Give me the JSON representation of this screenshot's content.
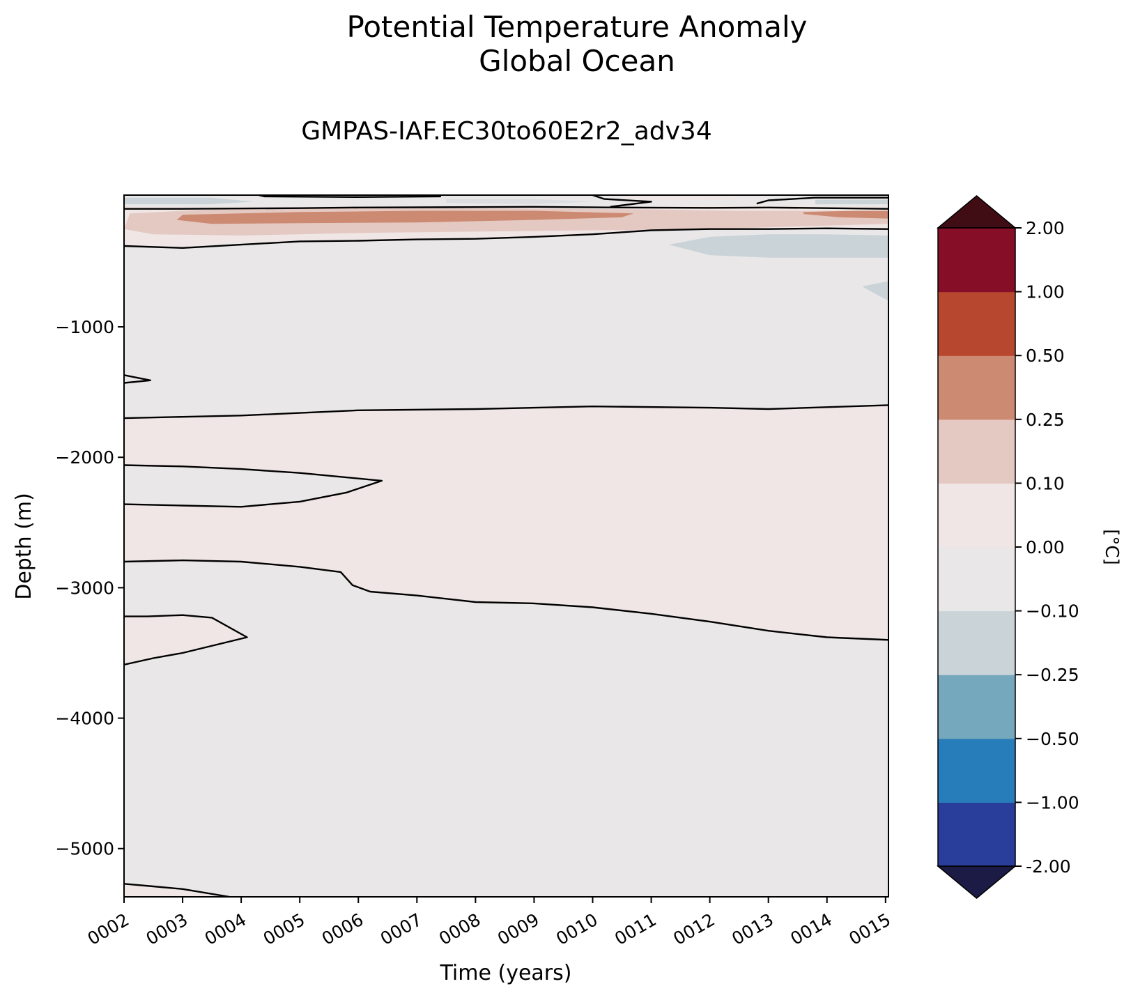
{
  "chart_data": {
    "type": "heatmap",
    "title": [
      "Potential Temperature Anomaly",
      "Global Ocean"
    ],
    "subtitle": "GMPAS-IAF.EC30to60E2r2_adv34",
    "xlabel": "Time (years)",
    "ylabel": "Depth (m)",
    "x_tick_labels": [
      "0002",
      "0003",
      "0004",
      "0005",
      "0006",
      "0007",
      "0008",
      "0009",
      "0010",
      "0011",
      "0012",
      "0013",
      "0014",
      "0015"
    ],
    "x_ticks": [
      2,
      3,
      4,
      5,
      6,
      7,
      8,
      9,
      10,
      11,
      12,
      13,
      14,
      15
    ],
    "xlim": [
      2,
      15.05
    ],
    "y_ticks": [
      -1000,
      -2000,
      -3000,
      -4000,
      -5000
    ],
    "ylim": [
      -5370,
      10
    ],
    "colorbar": {
      "label": "[°C]",
      "levels": [
        -2.0,
        -1.0,
        -0.5,
        -0.25,
        -0.1,
        0.0,
        0.1,
        0.25,
        0.5,
        1.0,
        2.0
      ],
      "tick_labels": [
        "-2.00",
        "−1.00",
        "−0.50",
        "−0.25",
        "−0.10",
        "0.00",
        "0.10",
        "0.25",
        "0.50",
        "1.00",
        "2.00"
      ],
      "colors": [
        "#293d9b",
        "#277cba",
        "#76a8bd",
        "#c9d3d8",
        "#e9e7e8",
        "#efe6e5",
        "#e4c9c2",
        "#cd8a72",
        "#b7472f",
        "#870e27"
      ],
      "under_color": "#1b1b45",
      "over_color": "#410d14",
      "extend": "both"
    },
    "background_color": "#e9e7e8",
    "regions": [
      {
        "name": "positive-deep-band",
        "range": "0.00 to 0.10",
        "color": "#efe6e5",
        "top": [
          [
            2,
            -1700
          ],
          [
            3,
            -1690
          ],
          [
            5,
            -1650
          ],
          [
            7,
            -1620
          ],
          [
            10,
            -1610
          ],
          [
            13,
            -1620
          ],
          [
            15.05,
            -1600
          ]
        ],
        "bottom": [
          [
            15.05,
            -3400
          ],
          [
            14,
            -3380
          ],
          [
            13,
            -3330
          ],
          [
            12,
            -3260
          ],
          [
            11,
            -3200
          ],
          [
            10,
            -3150
          ],
          [
            9,
            -3120
          ],
          [
            8,
            -3110
          ],
          [
            7,
            -3060
          ],
          [
            6.2,
            -3030
          ],
          [
            5.9,
            -2980
          ],
          [
            5.7,
            -2880
          ],
          [
            5,
            -2850
          ],
          [
            4,
            -2800
          ],
          [
            3,
            -2790
          ],
          [
            2,
            -2800
          ]
        ]
      },
      {
        "name": "negative-lens-2000m",
        "range": "-0.10 to 0.00",
        "color": "#e9e7e8",
        "outline": [
          [
            2,
            -2060
          ],
          [
            3,
            -2070
          ],
          [
            4,
            -2090
          ],
          [
            5,
            -2120
          ],
          [
            6.4,
            -2180
          ],
          [
            5.8,
            -2270
          ],
          [
            5,
            -2340
          ],
          [
            4,
            -2380
          ],
          [
            3,
            -2370
          ],
          [
            2,
            -2360
          ]
        ]
      },
      {
        "name": "positive-lens-3300m",
        "range": "0.00 to 0.10",
        "color": "#efe6e5",
        "outline": [
          [
            2,
            -3220
          ],
          [
            2.4,
            -3220
          ],
          [
            3,
            -3210
          ],
          [
            3.5,
            -3230
          ],
          [
            4.1,
            -3380
          ],
          [
            3,
            -3500
          ],
          [
            2.5,
            -3540
          ],
          [
            2,
            -3590
          ]
        ]
      },
      {
        "name": "positive-upper-band",
        "range": "0.00 to 0.10",
        "color": "#efe6e5",
        "top": [
          [
            2,
            -80
          ],
          [
            4,
            -80
          ],
          [
            6,
            -75
          ],
          [
            8,
            -80
          ],
          [
            10.5,
            -80
          ],
          [
            12,
            -70
          ],
          [
            13.5,
            -70
          ],
          [
            15.05,
            -80
          ]
        ],
        "bottom": [
          [
            15.05,
            -250
          ],
          [
            14,
            -240
          ],
          [
            12,
            -250
          ],
          [
            11,
            -260
          ],
          [
            10,
            -280
          ],
          [
            9,
            -310
          ],
          [
            8,
            -320
          ],
          [
            6,
            -330
          ],
          [
            5,
            -340
          ],
          [
            4,
            -350
          ],
          [
            3,
            -395
          ],
          [
            2,
            -385
          ]
        ]
      },
      {
        "name": "positive-upper-moderate",
        "range": "0.10 to 0.25",
        "color": "#e4c9c2",
        "outline": [
          [
            2.1,
            -130
          ],
          [
            4,
            -90
          ],
          [
            6,
            -85
          ],
          [
            8,
            -90
          ],
          [
            11,
            -100
          ],
          [
            12.5,
            -110
          ],
          [
            15.05,
            -110
          ],
          [
            15.05,
            -210
          ],
          [
            12,
            -250
          ],
          [
            10,
            -260
          ],
          [
            8,
            -270
          ],
          [
            6,
            -280
          ],
          [
            4,
            -300
          ],
          [
            2.5,
            -290
          ],
          [
            2,
            -250
          ]
        ]
      },
      {
        "name": "positive-upper-strong",
        "range": "0.25 to 0.50",
        "color": "#cd8a72",
        "outline": [
          [
            3,
            -140
          ],
          [
            5,
            -120
          ],
          [
            7,
            -110
          ],
          [
            9,
            -110
          ],
          [
            10.7,
            -130
          ],
          [
            10.5,
            -160
          ],
          [
            9,
            -180
          ],
          [
            7,
            -200
          ],
          [
            5,
            -205
          ],
          [
            3.5,
            -210
          ],
          [
            2.9,
            -180
          ]
        ]
      },
      {
        "name": "positive-upper-right",
        "range": "0.25 to 0.50",
        "color": "#cd8a72",
        "outline": [
          [
            13.6,
            -120
          ],
          [
            14.5,
            -110
          ],
          [
            15.05,
            -110
          ],
          [
            15.05,
            -170
          ],
          [
            14.2,
            -160
          ],
          [
            13.6,
            -135
          ]
        ]
      },
      {
        "name": "negative-surface-left",
        "range": "-0.25 to -0.10",
        "color": "#c9d3d8",
        "outline": [
          [
            2,
            -10
          ],
          [
            3.5,
            -10
          ],
          [
            4.2,
            -40
          ],
          [
            3.5,
            -60
          ],
          [
            2,
            -60
          ]
        ]
      },
      {
        "name": "negative-surface-mid",
        "range": "-0.10 to 0.00",
        "color": "#dcdde1",
        "outline": [
          [
            7.5,
            -20
          ],
          [
            9,
            -20
          ],
          [
            10,
            -40
          ],
          [
            9,
            -60
          ],
          [
            7.5,
            -50
          ]
        ]
      },
      {
        "name": "positive-surface-top",
        "range": "0.00 to 0.10",
        "color": "#efe6e5",
        "outline": [
          [
            10.5,
            0
          ],
          [
            12.5,
            0
          ],
          [
            12.3,
            -25
          ],
          [
            11,
            -30
          ],
          [
            10.5,
            -15
          ]
        ]
      },
      {
        "name": "negative-surface-right",
        "range": "-0.25 to -0.10",
        "color": "#c9d3d8",
        "outline": [
          [
            13.8,
            -25
          ],
          [
            15.05,
            -25
          ],
          [
            15.05,
            -60
          ],
          [
            13.8,
            -60
          ]
        ]
      },
      {
        "name": "negative-subsurface-right",
        "range": "-0.25 to -0.10",
        "color": "#c9d3d8",
        "outline": [
          [
            11.3,
            -370
          ],
          [
            12,
            -310
          ],
          [
            13,
            -290
          ],
          [
            14,
            -290
          ],
          [
            15.05,
            -300
          ],
          [
            15.05,
            -470
          ],
          [
            13,
            -470
          ],
          [
            12,
            -450
          ]
        ]
      },
      {
        "name": "negative-700m-right",
        "range": "-0.25 to -0.10",
        "color": "#c9d3d8",
        "outline": [
          [
            14.6,
            -690
          ],
          [
            15.05,
            -650
          ],
          [
            15.05,
            -800
          ],
          [
            14.8,
            -740
          ]
        ]
      },
      {
        "name": "positive-bottom-left",
        "range": "0.00 to 0.10",
        "color": "#efe6e5",
        "outline": [
          [
            2,
            -5270
          ],
          [
            2.5,
            -5290
          ],
          [
            3,
            -5310
          ],
          [
            3.8,
            -5370
          ],
          [
            2,
            -5370
          ]
        ]
      }
    ],
    "contour_lines": [
      {
        "name": "zero-contour-surface",
        "points": [
          [
            2,
            -95
          ],
          [
            3,
            -95
          ],
          [
            5,
            -90
          ],
          [
            6,
            -85
          ],
          [
            8,
            -82
          ],
          [
            9,
            -80
          ],
          [
            10.5,
            -85
          ],
          [
            12,
            -88
          ],
          [
            13,
            -85
          ],
          [
            14,
            -90
          ],
          [
            15.05,
            -95
          ]
        ]
      },
      {
        "name": "zero-contour-surface-loop-left",
        "points": [
          [
            4.3,
            10
          ],
          [
            4.4,
            0
          ],
          [
            6,
            -5
          ],
          [
            7.4,
            0
          ],
          [
            7.3,
            10
          ]
        ]
      },
      {
        "name": "zero-contour-surface-loop-mid",
        "points": [
          [
            10,
            10
          ],
          [
            10.2,
            -20
          ],
          [
            11,
            -40
          ],
          [
            10.3,
            -80
          ]
        ]
      },
      {
        "name": "zero-contour-surface-loop-right",
        "points": [
          [
            12.8,
            -55
          ],
          [
            13,
            -30
          ],
          [
            13.8,
            -10
          ],
          [
            15.05,
            -10
          ]
        ]
      },
      {
        "name": "zero-contour-400m",
        "points": [
          [
            2,
            -380
          ],
          [
            3,
            -395
          ],
          [
            4,
            -370
          ],
          [
            5,
            -345
          ],
          [
            6,
            -340
          ],
          [
            7,
            -330
          ],
          [
            8,
            -325
          ],
          [
            9,
            -310
          ],
          [
            10,
            -290
          ],
          [
            11,
            -260
          ],
          [
            12,
            -250
          ],
          [
            13,
            -250
          ],
          [
            14,
            -245
          ],
          [
            15.05,
            -250
          ]
        ]
      },
      {
        "name": "zero-contour-1400m-spike",
        "points": [
          [
            2,
            -1370
          ],
          [
            2.45,
            -1410
          ],
          [
            2,
            -1430
          ]
        ]
      },
      {
        "name": "zero-contour-1700m",
        "points": [
          [
            2,
            -1700
          ],
          [
            3,
            -1690
          ],
          [
            4,
            -1680
          ],
          [
            5,
            -1660
          ],
          [
            6,
            -1640
          ],
          [
            8,
            -1630
          ],
          [
            10,
            -1610
          ],
          [
            12,
            -1620
          ],
          [
            13,
            -1630
          ],
          [
            15.05,
            -1600
          ]
        ]
      },
      {
        "name": "zero-contour-2000m-lens",
        "points": [
          [
            2,
            -2060
          ],
          [
            3,
            -2070
          ],
          [
            4,
            -2090
          ],
          [
            5,
            -2120
          ],
          [
            6.4,
            -2180
          ],
          [
            5.8,
            -2270
          ],
          [
            5,
            -2340
          ],
          [
            4,
            -2380
          ],
          [
            3,
            -2370
          ],
          [
            2,
            -2360
          ]
        ]
      },
      {
        "name": "zero-contour-2800m",
        "points": [
          [
            2,
            -2800
          ],
          [
            3,
            -2790
          ],
          [
            4,
            -2800
          ],
          [
            5,
            -2840
          ],
          [
            5.7,
            -2880
          ],
          [
            5.9,
            -2980
          ],
          [
            6.2,
            -3030
          ],
          [
            7,
            -3060
          ],
          [
            8,
            -3110
          ],
          [
            9,
            -3120
          ],
          [
            10,
            -3150
          ],
          [
            11,
            -3200
          ],
          [
            12,
            -3260
          ],
          [
            13,
            -3330
          ],
          [
            14,
            -3380
          ],
          [
            15.05,
            -3400
          ]
        ]
      },
      {
        "name": "zero-contour-3300m-lens",
        "points": [
          [
            2,
            -3220
          ],
          [
            2.4,
            -3220
          ],
          [
            3,
            -3210
          ],
          [
            3.5,
            -3230
          ],
          [
            4.1,
            -3380
          ],
          [
            3,
            -3500
          ],
          [
            2.5,
            -3540
          ],
          [
            2,
            -3590
          ]
        ]
      },
      {
        "name": "zero-contour-bottom",
        "points": [
          [
            2,
            -5270
          ],
          [
            2.5,
            -5290
          ],
          [
            3,
            -5310
          ],
          [
            3.8,
            -5370
          ]
        ]
      }
    ]
  }
}
